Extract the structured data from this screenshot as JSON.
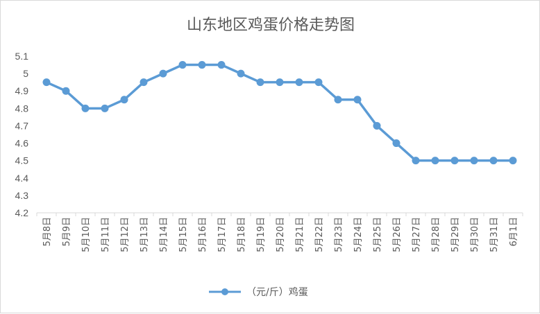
{
  "chart_data": {
    "type": "line",
    "title": "山东地区鸡蛋价格走势图",
    "xlabel": "",
    "ylabel": "",
    "categories": [
      "5月8日",
      "5月9日",
      "5月10日",
      "5月11日",
      "5月12日",
      "5月13日",
      "5月14日",
      "5月15日",
      "5月16日",
      "5月17日",
      "5月18日",
      "5月19日",
      "5月20日",
      "5月21日",
      "5月22日",
      "5月23日",
      "5月24日",
      "5月25日",
      "5月26日",
      "5月27日",
      "5月28日",
      "5月29日",
      "5月30日",
      "5月31日",
      "6月1日"
    ],
    "series": [
      {
        "name": "（元/斤）鸡蛋",
        "values": [
          4.95,
          4.9,
          4.8,
          4.8,
          4.85,
          4.95,
          5.0,
          5.05,
          5.05,
          5.05,
          5.0,
          4.95,
          4.95,
          4.95,
          4.95,
          4.85,
          4.85,
          4.7,
          4.6,
          4.5,
          4.5,
          4.5,
          4.5,
          4.5,
          4.5
        ],
        "color": "#5b9bd5"
      }
    ],
    "ylim": [
      4.2,
      5.1
    ],
    "yticks": [
      "4.2",
      "4.3",
      "4.4",
      "4.5",
      "4.6",
      "4.7",
      "4.8",
      "4.9",
      "5",
      "5.1"
    ],
    "grid": false,
    "legend": "bottom"
  }
}
